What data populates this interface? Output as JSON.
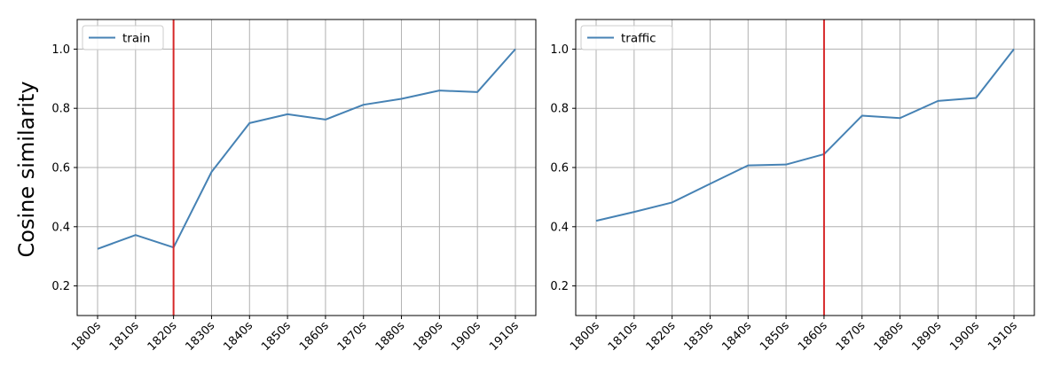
{
  "ylabel": "Cosine similarity",
  "colors": {
    "line": "#4682b4",
    "vline": "#d62728",
    "grid": "#b0b0b0",
    "frame": "#000000"
  },
  "chart_data": [
    {
      "type": "line",
      "categories": [
        "1800s",
        "1810s",
        "1820s",
        "1830s",
        "1840s",
        "1850s",
        "1860s",
        "1870s",
        "1880s",
        "1890s",
        "1900s",
        "1910s"
      ],
      "series": [
        {
          "name": "train",
          "values": [
            0.325,
            0.372,
            0.33,
            0.585,
            0.75,
            0.78,
            0.762,
            0.812,
            0.832,
            0.86,
            0.855,
            1.0
          ]
        }
      ],
      "vline": "1820s",
      "ylim": [
        0.1,
        1.1
      ],
      "yticks": [
        0.2,
        0.4,
        0.6,
        0.8,
        1.0
      ],
      "ytick_labels": [
        "0.2",
        "0.4",
        "0.6",
        "0.8",
        "1.0"
      ],
      "grid": true,
      "legend_position": "top-left"
    },
    {
      "type": "line",
      "categories": [
        "1800s",
        "1810s",
        "1820s",
        "1830s",
        "1840s",
        "1850s",
        "1860s",
        "1870s",
        "1880s",
        "1890s",
        "1900s",
        "1910s"
      ],
      "series": [
        {
          "name": "traffic",
          "values": [
            0.42,
            0.45,
            0.482,
            0.545,
            0.607,
            0.61,
            0.645,
            0.775,
            0.767,
            0.825,
            0.835,
            1.0
          ]
        }
      ],
      "vline": "1860s",
      "ylim": [
        0.1,
        1.1
      ],
      "yticks": [
        0.2,
        0.4,
        0.6,
        0.8,
        1.0
      ],
      "ytick_labels": [
        "0.2",
        "0.4",
        "0.6",
        "0.8",
        "1.0"
      ],
      "grid": true,
      "legend_position": "top-left"
    }
  ]
}
